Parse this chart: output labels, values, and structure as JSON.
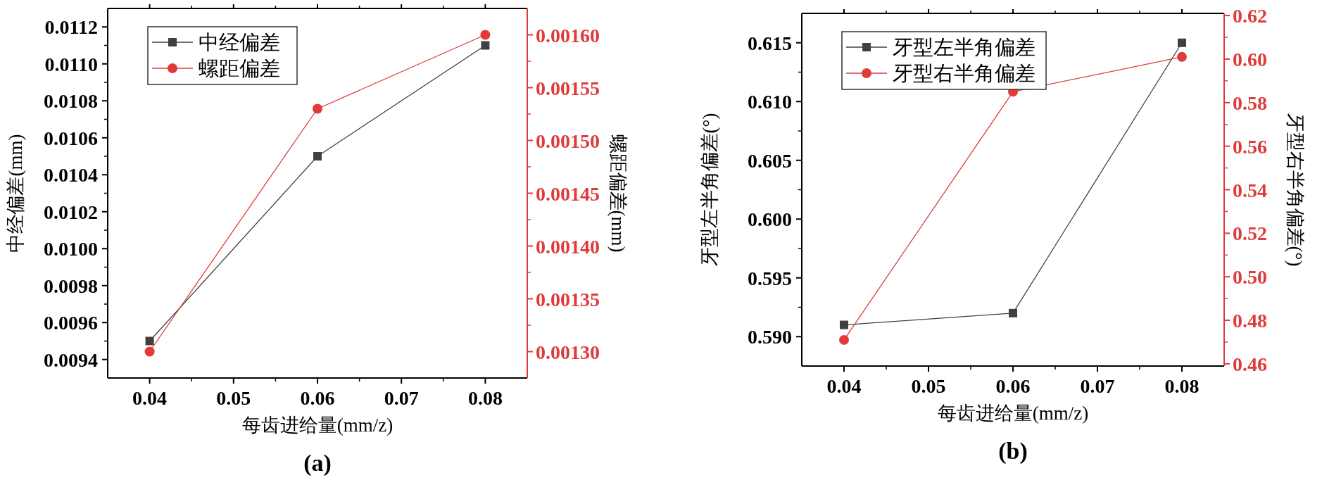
{
  "chart_data": [
    {
      "type": "line",
      "xlabel": "每齿进给量(mm/z)",
      "ylabel": "中经偏差(mm)",
      "y2label": "螺距偏差(mm)",
      "x": [
        0.04,
        0.06,
        0.08
      ],
      "series": [
        {
          "name": "中经偏差",
          "color": "#404040",
          "marker": "square",
          "values": [
            0.0095,
            0.0105,
            0.0111
          ]
        },
        {
          "name": "螺距偏差",
          "color": "#e03a3a",
          "marker": "circle",
          "axis": "y2",
          "values": [
            0.0013,
            0.00153,
            0.0016
          ]
        }
      ],
      "xlim": [
        0.035,
        0.085
      ],
      "xticks": [
        {
          "value": 0.04,
          "label": "0.04"
        },
        {
          "value": 0.05,
          "label": "0.05"
        },
        {
          "value": 0.06,
          "label": "0.06"
        },
        {
          "value": 0.07,
          "label": "0.07"
        },
        {
          "value": 0.08,
          "label": "0.08"
        }
      ],
      "ylim": [
        0.0093,
        0.0113
      ],
      "yticks": [
        {
          "value": 0.0094,
          "label": "0.0094"
        },
        {
          "value": 0.0096,
          "label": "0.0096"
        },
        {
          "value": 0.0098,
          "label": "0.0098"
        },
        {
          "value": 0.01,
          "label": "0.0100"
        },
        {
          "value": 0.0102,
          "label": "0.0102"
        },
        {
          "value": 0.0104,
          "label": "0.0104"
        },
        {
          "value": 0.0106,
          "label": "0.0106"
        },
        {
          "value": 0.0108,
          "label": "0.0108"
        },
        {
          "value": 0.011,
          "label": "0.0110"
        },
        {
          "value": 0.0112,
          "label": "0.0112"
        }
      ],
      "y2lim": [
        0.001275,
        0.001625
      ],
      "y2ticks": [
        {
          "value": 0.0013,
          "label": "0.00130"
        },
        {
          "value": 0.00135,
          "label": "0.00135"
        },
        {
          "value": 0.0014,
          "label": "0.00140"
        },
        {
          "value": 0.00145,
          "label": "0.00145"
        },
        {
          "value": 0.0015,
          "label": "0.00150"
        },
        {
          "value": 0.00155,
          "label": "0.00155"
        },
        {
          "value": 0.0016,
          "label": "0.00160"
        }
      ],
      "legend": "top left",
      "grid": false,
      "line_style": "solid",
      "annotations": [
        "(a)"
      ]
    },
    {
      "type": "line",
      "xlabel": "每齿进给量(mm/z)",
      "ylabel": "牙型左半角偏差(°)",
      "y2label": "牙型右半角偏差(°)",
      "x": [
        0.04,
        0.06,
        0.08
      ],
      "series": [
        {
          "name": "牙型左半角偏差",
          "color": "#404040",
          "marker": "square",
          "values": [
            0.591,
            0.592,
            0.615
          ]
        },
        {
          "name": "牙型右半角偏差",
          "color": "#e03a3a",
          "marker": "circle",
          "axis": "y2",
          "values": [
            0.471,
            0.585,
            0.601
          ]
        }
      ],
      "xlim": [
        0.035,
        0.085
      ],
      "xticks": [
        {
          "value": 0.04,
          "label": "0.04"
        },
        {
          "value": 0.05,
          "label": "0.05"
        },
        {
          "value": 0.06,
          "label": "0.06"
        },
        {
          "value": 0.07,
          "label": "0.07"
        },
        {
          "value": 0.08,
          "label": "0.08"
        }
      ],
      "ylim": [
        0.5875,
        0.6175
      ],
      "yticks": [
        {
          "value": 0.59,
          "label": "0.590"
        },
        {
          "value": 0.595,
          "label": "0.595"
        },
        {
          "value": 0.6,
          "label": "0.600"
        },
        {
          "value": 0.605,
          "label": "0.605"
        },
        {
          "value": 0.61,
          "label": "0.610"
        },
        {
          "value": 0.615,
          "label": "0.615"
        }
      ],
      "y2lim": [
        0.459,
        0.621
      ],
      "y2ticks": [
        {
          "value": 0.46,
          "label": "0.46"
        },
        {
          "value": 0.48,
          "label": "0.48"
        },
        {
          "value": 0.5,
          "label": "0.50"
        },
        {
          "value": 0.52,
          "label": "0.52"
        },
        {
          "value": 0.54,
          "label": "0.54"
        },
        {
          "value": 0.56,
          "label": "0.56"
        },
        {
          "value": 0.58,
          "label": "0.58"
        },
        {
          "value": 0.6,
          "label": "0.60"
        },
        {
          "value": 0.62,
          "label": "0.62"
        }
      ],
      "legend": "top left",
      "grid": false,
      "line_style": "solid",
      "annotations": [
        "(b)"
      ]
    }
  ]
}
